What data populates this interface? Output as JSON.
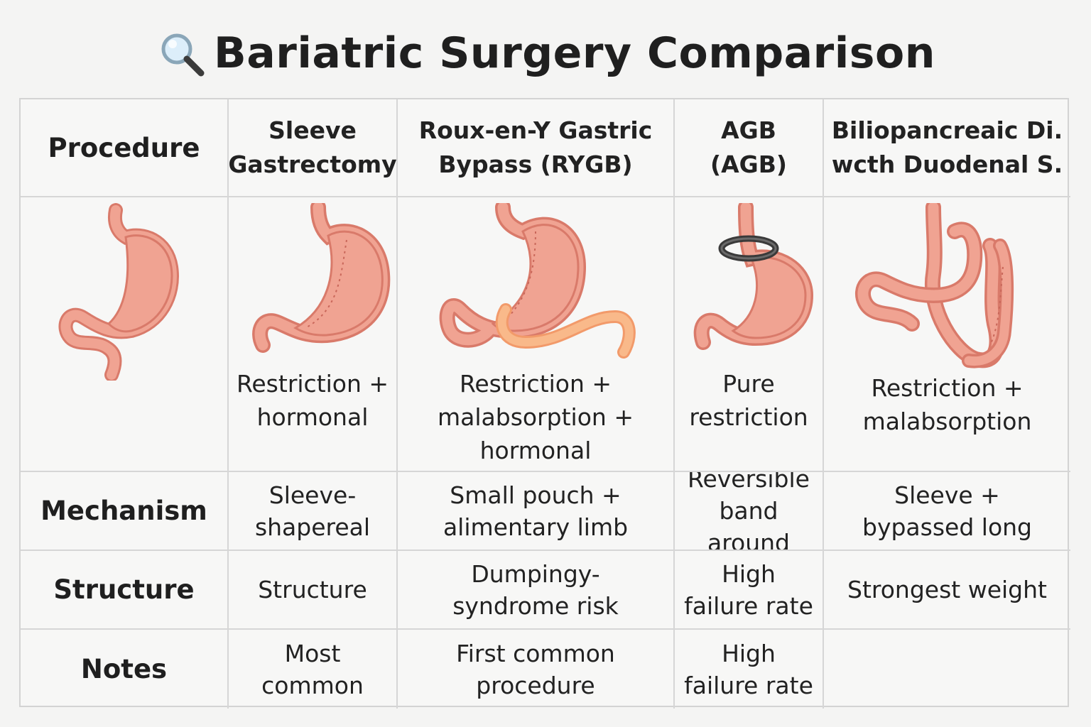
{
  "title": "Bariatric Surgery Comparison",
  "title_icon": "magnifying-glass-icon",
  "colors": {
    "stomach_fill": "#f0a392",
    "stomach_stroke": "#d97a6a",
    "limb_fill": "#f9b98a",
    "band": "#3a3a3a",
    "grid_line": "#d6d6d6"
  },
  "header": {
    "row_label": "Procedure",
    "columns": [
      {
        "line1": "Sleeve",
        "line2": "Gastrectomy"
      },
      {
        "line1": "Roux-en-Y Gastric",
        "line2": "Bypass (RYGB)"
      },
      {
        "line1": "AGB",
        "line2": "(AGB)"
      },
      {
        "line1": "Biliopancreaic Di.",
        "line2": "wcth Duodenal S."
      }
    ]
  },
  "illustrations": {
    "normal": {
      "icon": "normal-stomach-icon"
    },
    "columns": [
      {
        "icon": "sleeve-stomach-icon",
        "caption": [
          "Restriction +",
          "hormonal"
        ]
      },
      {
        "icon": "bypass-stomach-icon",
        "caption": [
          "Restriction +",
          "malabsorption +",
          "hormonal"
        ]
      },
      {
        "icon": "banded-stomach-icon",
        "caption": [
          "Pure",
          "restriction"
        ]
      },
      {
        "icon": "duodenal-switch-icon",
        "caption": [
          "Restriction +",
          "malabsorption"
        ]
      }
    ]
  },
  "rows": [
    {
      "label": "Mechanism",
      "cells": [
        [
          "Sleeve-",
          "shapereal"
        ],
        [
          "Small pouch +",
          "alimentary limb"
        ],
        [
          "Reversible",
          "band around"
        ],
        [
          "Sleeve +",
          "bypassed long"
        ]
      ]
    },
    {
      "label": "Structure",
      "cells": [
        [
          "Structure"
        ],
        [
          "Dumpingy-",
          "syndrome risk"
        ],
        [
          "High",
          "failure rate"
        ],
        [
          "Strongest weight"
        ]
      ]
    },
    {
      "label": "Notes",
      "cells": [
        [
          "Most",
          "common"
        ],
        [
          "First common",
          "procedure"
        ],
        [
          "High",
          "failure rate"
        ],
        []
      ]
    }
  ]
}
